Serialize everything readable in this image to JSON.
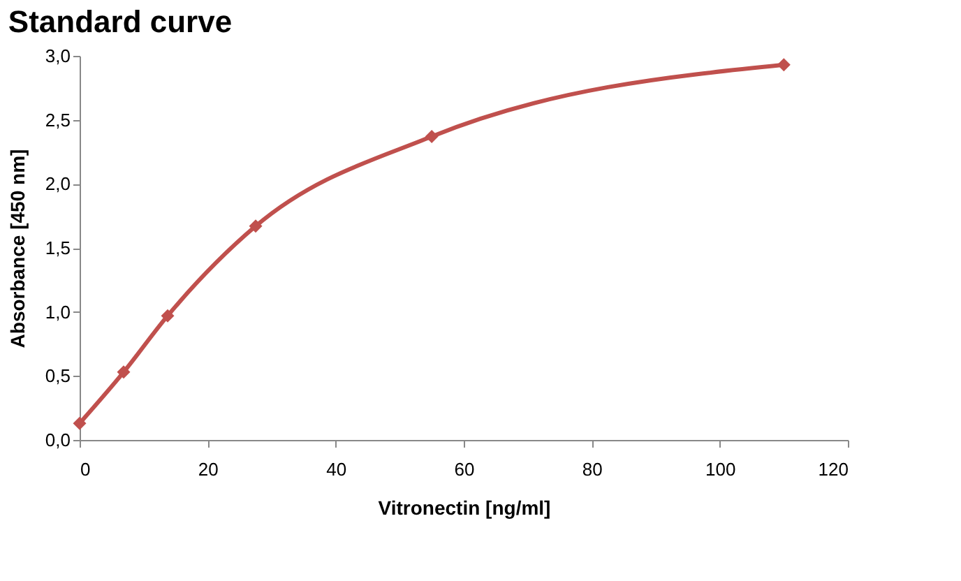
{
  "chart_data": {
    "type": "line",
    "title": "Standard curve",
    "xlabel": "Vitronectin [ng/ml]",
    "ylabel": "Absorbance [450 nm]",
    "x": [
      0,
      6.875,
      13.75,
      27.5,
      55,
      110
    ],
    "series": [
      {
        "color": "#c0504d",
        "values": [
          0.13,
          0.53,
          0.97,
          1.67,
          2.37,
          2.93
        ]
      }
    ],
    "xlim": [
      0,
      120
    ],
    "xticks": [
      0,
      20,
      40,
      60,
      80,
      100,
      120
    ],
    "ylim": [
      0,
      3
    ],
    "yticks": [
      {
        "value": 0,
        "label": "0,0"
      },
      {
        "value": 0.5,
        "label": "0,5"
      },
      {
        "value": 1,
        "label": "1,0"
      },
      {
        "value": 1.5,
        "label": "1,5"
      },
      {
        "value": 2,
        "label": "2,0"
      },
      {
        "value": 2.5,
        "label": "2,5"
      },
      {
        "value": 3,
        "label": "3,0"
      }
    ],
    "marker": "diamond",
    "line_style": "solid",
    "grid": false
  }
}
